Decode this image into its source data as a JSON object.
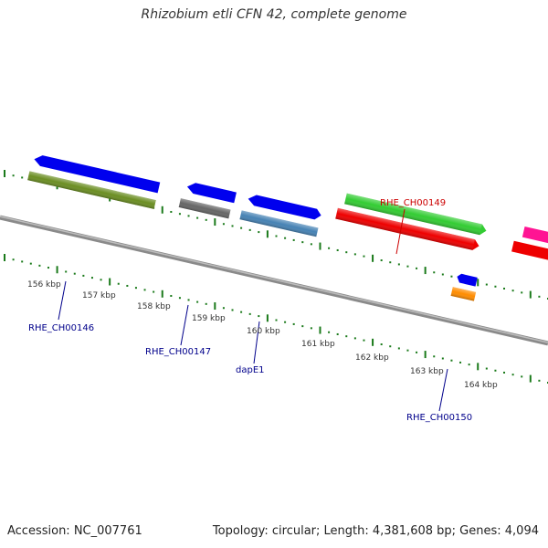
{
  "title": "Rhizobium etli CFN 42, complete genome",
  "footer": {
    "accession": "Accession: NC_007761",
    "summary": "Topology: circular; Length: 4,381,608 bp; Genes: 4,094"
  },
  "colors": {
    "backbone": "#8a8a8a",
    "ticks": "#1a7a1a",
    "label_forward": "#cc0000",
    "label_reverse": "#00008b"
  },
  "scale_labels": [
    "156 kbp",
    "157 kbp",
    "158 kbp",
    "159 kbp",
    "160 kbp",
    "161 kbp",
    "162 kbp",
    "163 kbp",
    "164 kbp"
  ],
  "genes": [
    {
      "label": "RHE_CH00146",
      "strand": "reverse",
      "color": "#0000ee"
    },
    {
      "label": "RHE_CH00147",
      "strand": "reverse",
      "color": "#0000ee"
    },
    {
      "label": "dapE1",
      "strand": "forward",
      "color": "#0000ee"
    },
    {
      "label": "RHE_CH00149",
      "strand": "forward",
      "color": "#33cc33"
    },
    {
      "label": "RHE_CH00150",
      "strand": "forward",
      "color": "#0000ee"
    }
  ],
  "features": [
    {
      "name": "olive-feature",
      "color": "#6b8e23"
    },
    {
      "name": "gray-feature",
      "color": "#666666"
    },
    {
      "name": "steelblue-feature",
      "color": "#4682b4"
    },
    {
      "name": "red-feature",
      "color": "#ee0000"
    },
    {
      "name": "orange-feature",
      "color": "#ff8c00"
    },
    {
      "name": "pink-feature",
      "color": "#ff1493"
    },
    {
      "name": "red-feature-2",
      "color": "#ee0000"
    }
  ]
}
